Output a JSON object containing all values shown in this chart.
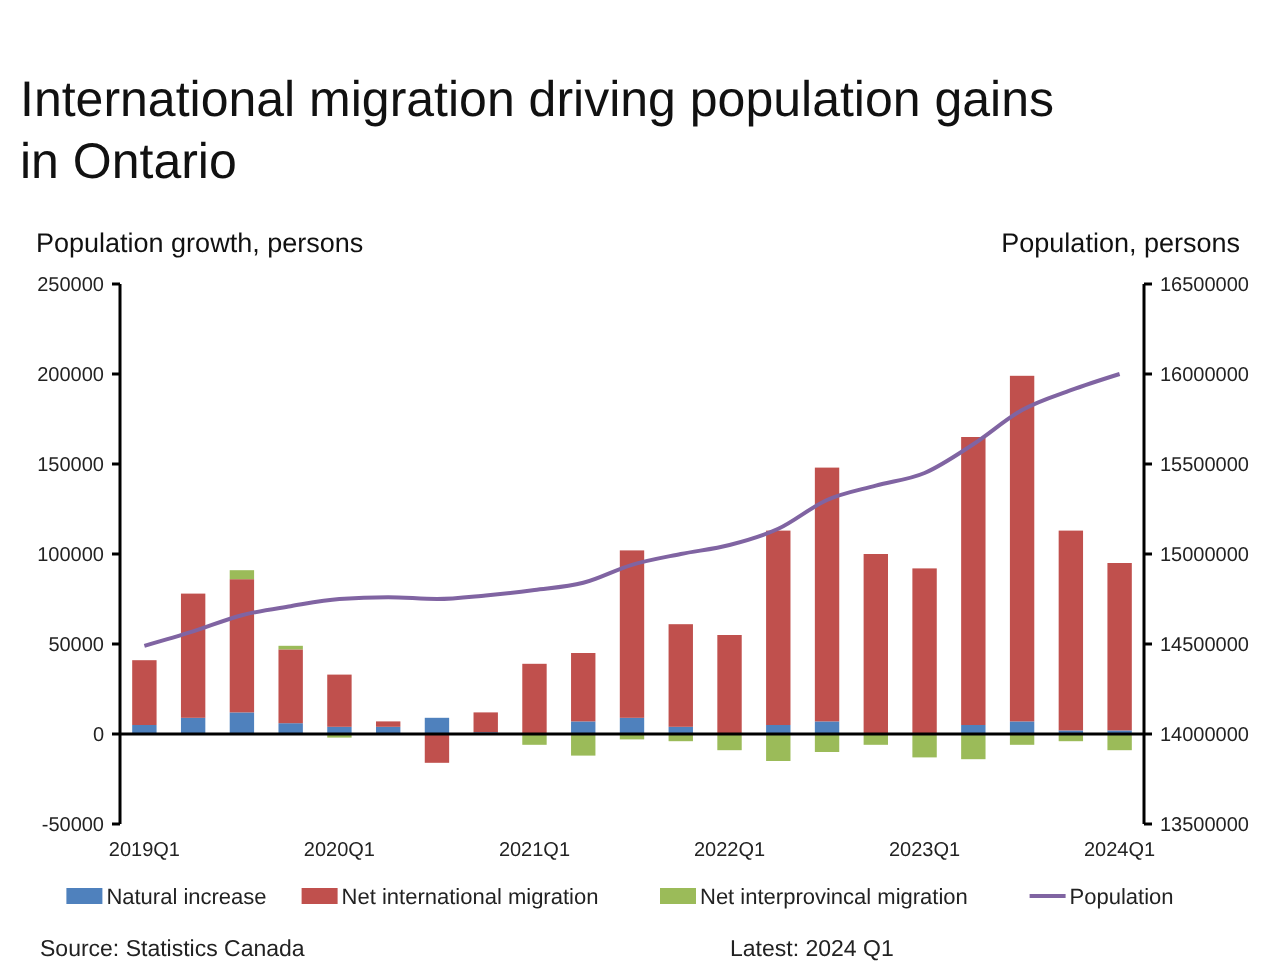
{
  "chart_data": {
    "type": "bar",
    "title": "International migration driving population gains in Ontario",
    "ylabel": "Population growth, persons",
    "y2label": "Population, persons",
    "stacked": true,
    "categories": [
      "2019Q1",
      null,
      null,
      null,
      "2020Q1",
      null,
      null,
      null,
      "2021Q1",
      null,
      null,
      null,
      "2022Q1",
      null,
      null,
      null,
      "2023Q1",
      null,
      null,
      null,
      "2024Q1"
    ],
    "series": [
      {
        "name": "Natural increase",
        "color": "#4f81bd",
        "values": [
          5000,
          9000,
          12000,
          6000,
          4000,
          4000,
          9000,
          1000,
          0,
          7000,
          9000,
          4000,
          0,
          5000,
          7000,
          0,
          0,
          5000,
          7000,
          2000,
          2000
        ]
      },
      {
        "name": "Net international migration",
        "color": "#c0504d",
        "values": [
          36000,
          69000,
          74000,
          41000,
          29000,
          3000,
          -16000,
          11000,
          39000,
          38000,
          93000,
          57000,
          55000,
          108000,
          141000,
          100000,
          92000,
          160000,
          192000,
          111000,
          93000
        ]
      },
      {
        "name": "Net interprovincal migration",
        "color": "#9bbb59",
        "values": [
          0,
          0,
          5000,
          2000,
          -2000,
          0,
          0,
          0,
          -6000,
          -12000,
          -3000,
          -4000,
          -9000,
          -15000,
          -10000,
          -6000,
          -13000,
          -14000,
          -6000,
          -4000,
          -9000
        ]
      },
      {
        "name": "Population",
        "type": "line",
        "axis": "y2",
        "color": "#8064a2",
        "values": [
          14490000,
          14570000,
          14660000,
          14710000,
          14750000,
          14760000,
          14750000,
          14770000,
          14800000,
          14840000,
          14940000,
          15000000,
          15050000,
          15140000,
          15300000,
          15380000,
          15450000,
          15610000,
          15800000,
          15910000,
          16000000
        ]
      }
    ],
    "ylim": [
      -50000,
      250000
    ],
    "yticks": [
      -50000,
      0,
      50000,
      100000,
      150000,
      200000,
      250000
    ],
    "y2lim": [
      13500000,
      16500000
    ],
    "y2ticks": [
      13500000,
      14000000,
      14500000,
      15000000,
      15500000,
      16000000,
      16500000
    ],
    "legend": "bottom",
    "marker": "none",
    "annotations": [
      "Source: Statistics Canada",
      "Latest: 2024 Q1"
    ]
  }
}
